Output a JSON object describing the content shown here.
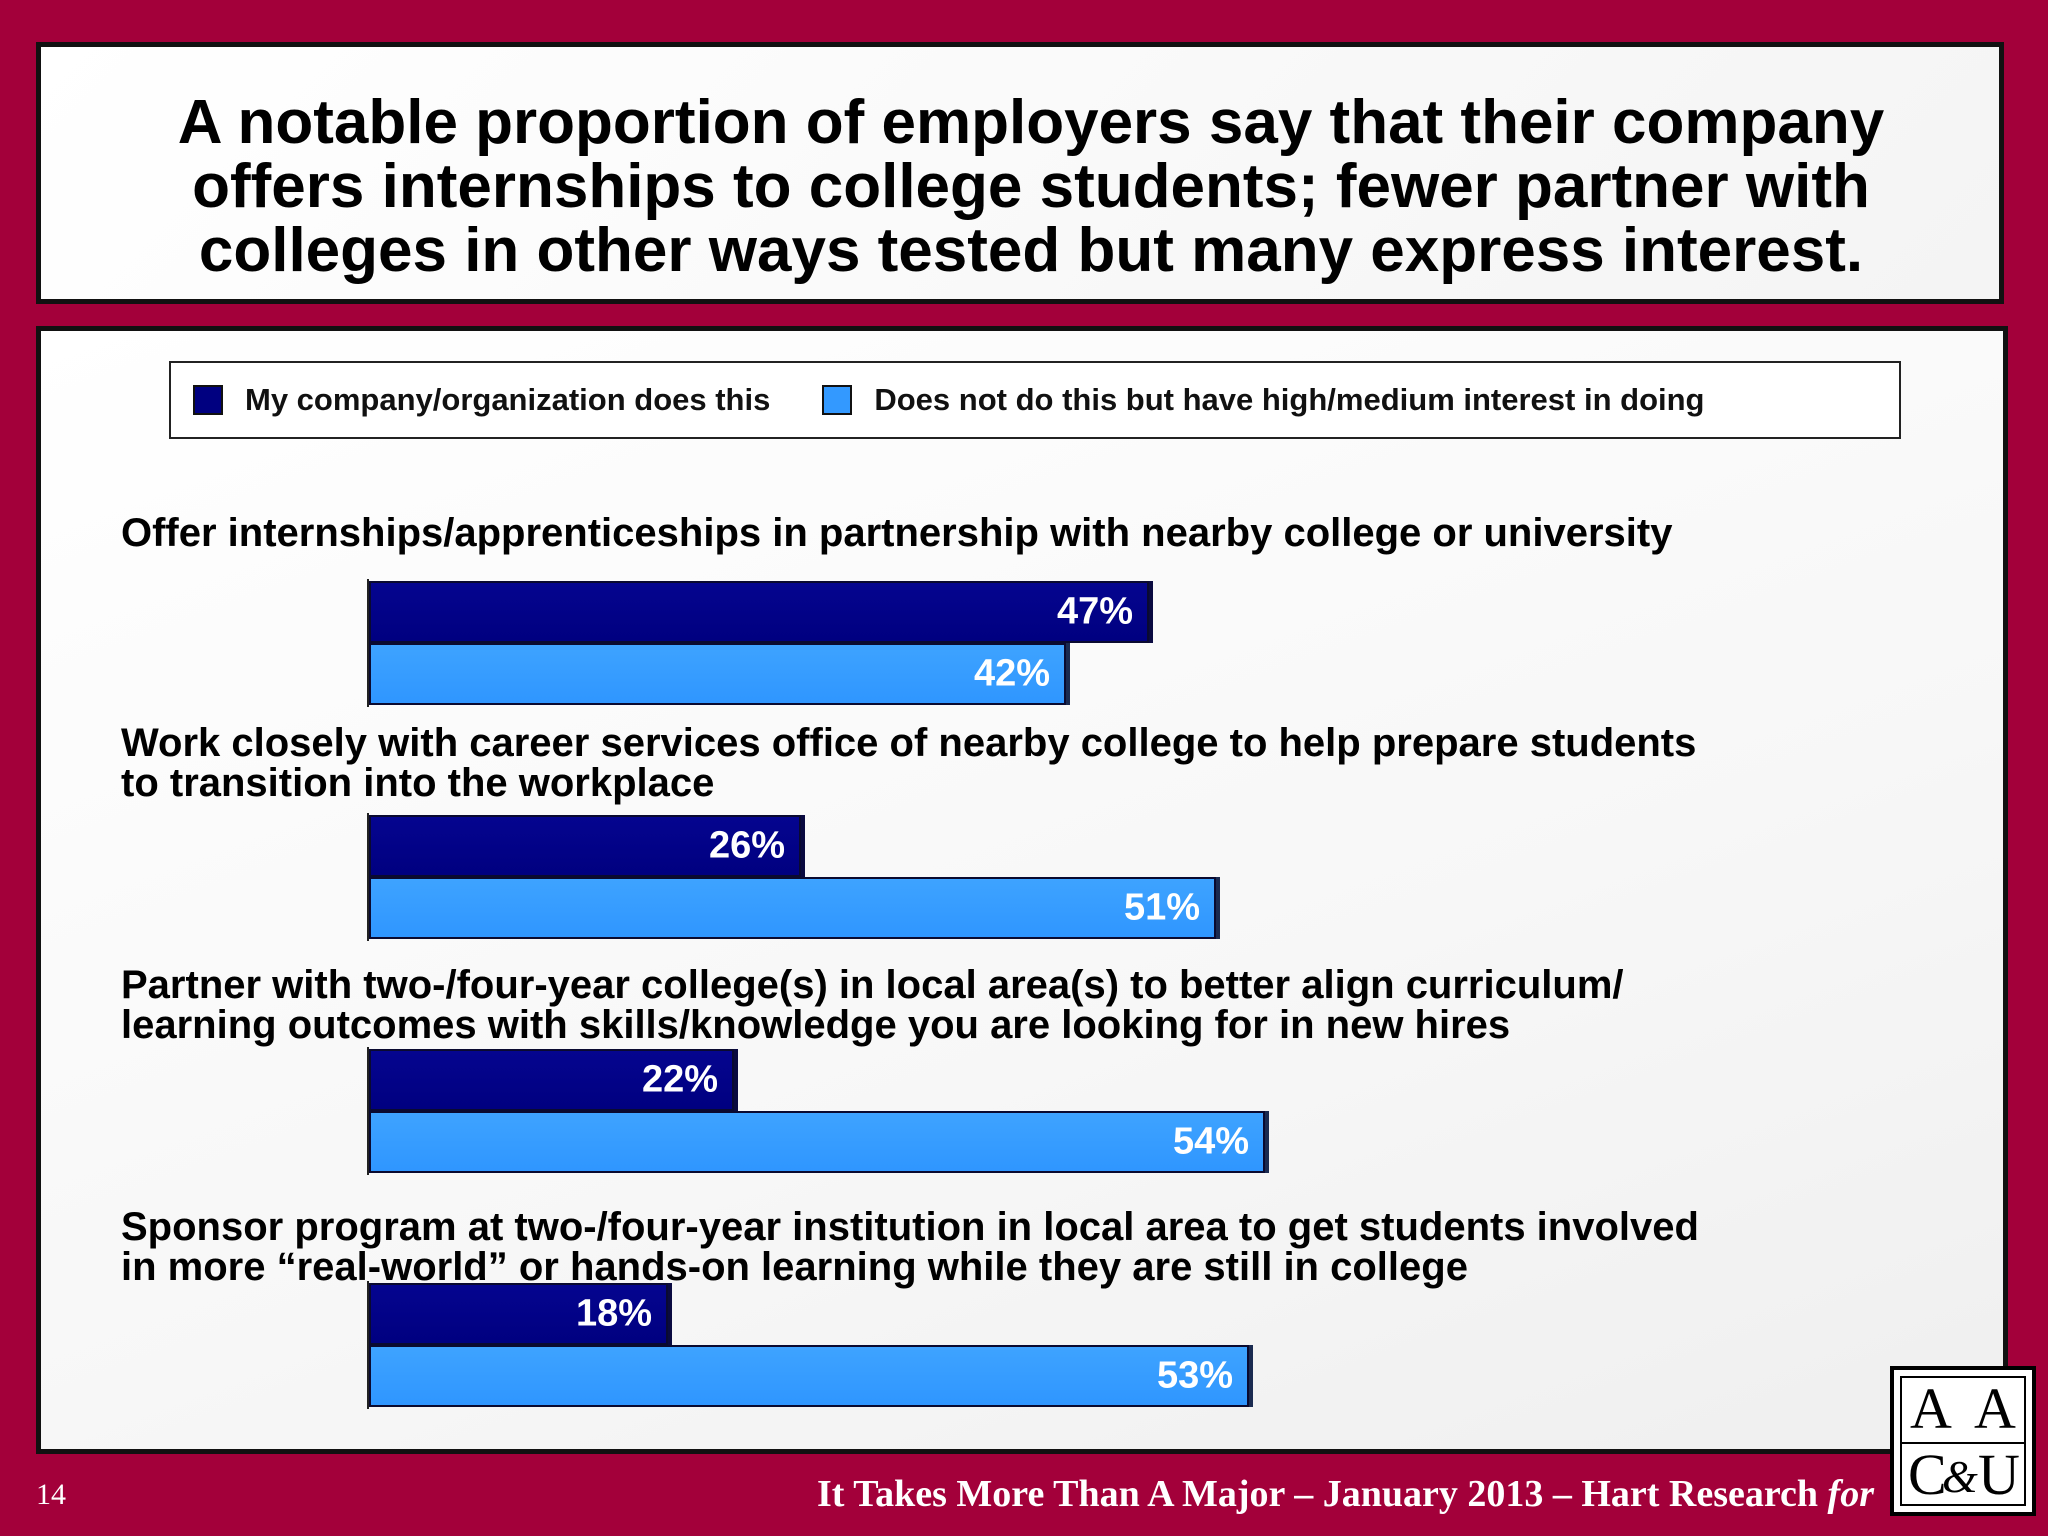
{
  "slide": {
    "title_lines": [
      "A notable proportion of employers say that their company",
      "offers internships to college students; fewer partner with",
      "colleges in other ways tested but many express interest."
    ],
    "page_number": "14",
    "footer": "It Takes More Than A Major – January 2013 – Hart Research",
    "footer_for": "for",
    "logo": {
      "letters": [
        "A",
        "A",
        "C",
        "&",
        "U"
      ],
      "name": "AAC&U"
    }
  },
  "colors": {
    "background": "#a3003a",
    "series_does": "#000080",
    "series_interest": "#3399ff"
  },
  "chart_data": {
    "type": "bar",
    "orientation": "horizontal",
    "legend": {
      "placement": "top",
      "entries": [
        "My company/organization does this",
        "Does not do this but have high/medium interest in doing"
      ]
    },
    "categories": [
      [
        "Offer internships/apprenticeships in partnership with nearby college or university"
      ],
      [
        "Work closely with career services office of nearby college to help prepare students",
        "to transition into the workplace"
      ],
      [
        "Partner with two-/four-year college(s) in  local area(s) to better align curriculum/",
        "learning outcomes with  skills/knowledge you are looking for in new hires"
      ],
      [
        "Sponsor program at two-/four-year institution in local area to get students involved",
        "in more “real-world” or hands-on learning while they are still in college"
      ]
    ],
    "series": [
      {
        "name": "My company/organization does this",
        "values": [
          47,
          26,
          22,
          18
        ]
      },
      {
        "name": "Does not do this but have high/medium interest in doing",
        "values": [
          42,
          51,
          54,
          53
        ]
      }
    ],
    "unit": "%",
    "xlim": [
      0,
      100
    ],
    "grid": false
  }
}
